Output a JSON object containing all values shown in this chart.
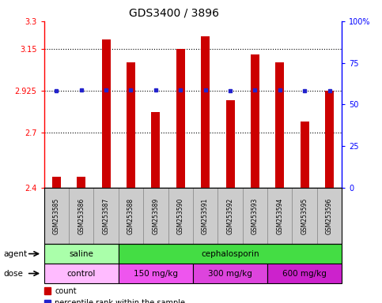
{
  "title": "GDS3400 / 3896",
  "samples": [
    "GSM253585",
    "GSM253586",
    "GSM253587",
    "GSM253588",
    "GSM253589",
    "GSM253590",
    "GSM253591",
    "GSM253592",
    "GSM253593",
    "GSM253594",
    "GSM253595",
    "GSM253596"
  ],
  "bar_values": [
    2.46,
    2.46,
    3.2,
    3.08,
    2.81,
    3.15,
    3.22,
    2.875,
    3.12,
    3.08,
    2.76,
    2.925
  ],
  "percentile_rank_y": [
    2.925,
    2.93,
    2.93,
    2.93,
    2.93,
    2.93,
    2.93,
    2.925,
    2.93,
    2.93,
    2.925,
    2.925
  ],
  "ylim_left": [
    2.4,
    3.3
  ],
  "ylim_right": [
    0,
    100
  ],
  "yticks_left": [
    2.4,
    2.7,
    2.925,
    3.15,
    3.3
  ],
  "ytick_labels_left": [
    "2.4",
    "2.7",
    "2.925",
    "3.15",
    "3.3"
  ],
  "yticks_right": [
    0,
    25,
    50,
    75,
    100
  ],
  "ytick_labels_right": [
    "0",
    "25",
    "50",
    "75",
    "100%"
  ],
  "bar_color": "#cc0000",
  "percentile_color": "#2222cc",
  "agent_groups": [
    {
      "label": "saline",
      "start": 0,
      "end": 3,
      "color": "#aaffaa"
    },
    {
      "label": "cephalosporin",
      "start": 3,
      "end": 12,
      "color": "#44dd44"
    }
  ],
  "dose_groups": [
    {
      "label": "control",
      "start": 0,
      "end": 3,
      "color": "#ffbbff"
    },
    {
      "label": "150 mg/kg",
      "start": 3,
      "end": 6,
      "color": "#ee55ee"
    },
    {
      "label": "300 mg/kg",
      "start": 6,
      "end": 9,
      "color": "#dd44dd"
    },
    {
      "label": "600 mg/kg",
      "start": 9,
      "end": 12,
      "color": "#cc22cc"
    }
  ],
  "agent_label": "agent",
  "dose_label": "dose",
  "legend_count_color": "#cc0000",
  "legend_percentile_color": "#2222cc",
  "title_fontsize": 10,
  "bar_width": 0.35,
  "xlim": [
    -0.5,
    11.5
  ],
  "sample_box_color": "#cccccc",
  "grid_color": "black",
  "spine_bottom_color": "black"
}
